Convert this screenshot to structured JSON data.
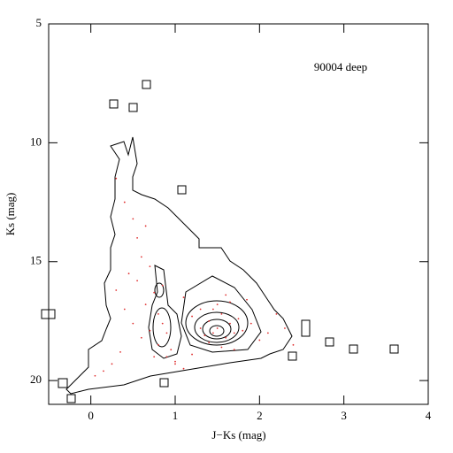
{
  "chart_data": {
    "type": "scatter",
    "annotation": "90004 deep",
    "x_label": "J−Ks (mag)",
    "y_label": "Ks (mag)",
    "xlim": [
      -0.5,
      4
    ],
    "ylim": [
      21,
      5
    ],
    "xticks": [
      0,
      1,
      2,
      3,
      4
    ],
    "yticks": [
      5,
      10,
      15,
      20
    ],
    "series": [
      {
        "color": "#e03030",
        "x": [
          0.3,
          0.4,
          0.5,
          0.55,
          0.6,
          0.45,
          0.7,
          0.75,
          0.65,
          0.8,
          0.85,
          0.7,
          0.9,
          0.8,
          0.75,
          0.85,
          0.95,
          1.0,
          0.6,
          0.5,
          0.35,
          0.25,
          0.15,
          0.05,
          0.4,
          1.1,
          1.2,
          1.3,
          1.35,
          1.4,
          1.45,
          1.5,
          1.55,
          1.6,
          1.65,
          1.7,
          1.75,
          1.8,
          1.5,
          1.6,
          1.4,
          1.55,
          1.7,
          1.3,
          1.9,
          2.0,
          2.1,
          2.2,
          1.45,
          1.65,
          1.2,
          1.0,
          1.1,
          0.9,
          0.65,
          0.55,
          0.3,
          2.3,
          2.4,
          1.85
        ],
        "y": [
          11.5,
          12.5,
          13.2,
          14.0,
          14.8,
          15.5,
          15.2,
          16.3,
          16.8,
          17.2,
          17.6,
          17.9,
          18.0,
          18.5,
          19.0,
          16.0,
          18.7,
          19.2,
          18.2,
          17.6,
          18.8,
          19.3,
          19.6,
          19.8,
          17.0,
          16.5,
          17.3,
          17.8,
          18.1,
          17.5,
          18.0,
          17.8,
          17.2,
          18.2,
          17.6,
          18.0,
          17.4,
          17.9,
          16.8,
          16.4,
          18.4,
          18.6,
          18.7,
          17.0,
          17.6,
          18.3,
          18.0,
          17.2,
          17.0,
          16.7,
          18.9,
          19.3,
          19.5,
          19.0,
          13.5,
          15.8,
          16.2,
          17.8,
          18.5,
          16.6
        ]
      }
    ]
  }
}
